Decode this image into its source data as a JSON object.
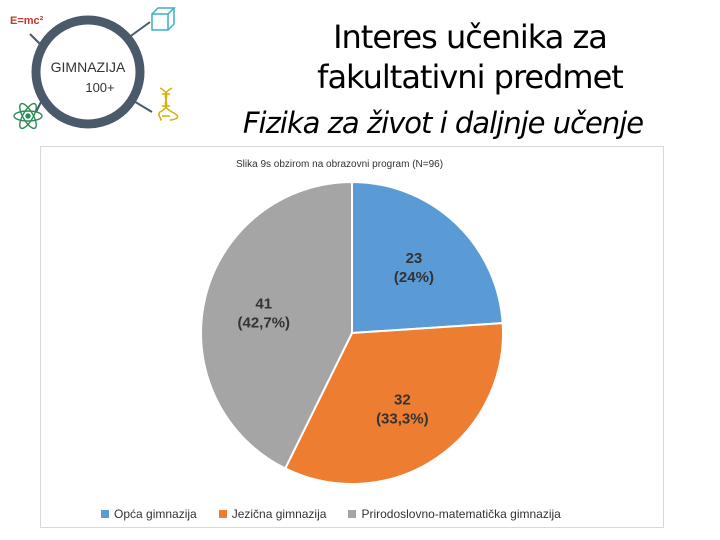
{
  "logo": {
    "formula": "E=mc²",
    "name_line1": "GIMNAZIJA",
    "name_line2": "100+",
    "ring_color": "#4a5a6a",
    "icons": [
      "cube-icon",
      "atom-icon",
      "dna-icon"
    ]
  },
  "title": {
    "line1": "Interes učenika za",
    "line2": "fakultativni predmet",
    "line3": "Fizika za život i daljnje učenje"
  },
  "chart_data": {
    "type": "pie",
    "subtitle": "Slika 9s obzirom na obrazovni program (N=96)",
    "slices": [
      {
        "label": "Opća gimnazija",
        "value": 23,
        "percent_label": "(24%)",
        "color": "#5b9bd5"
      },
      {
        "label": "Jezična gimnazija",
        "value": 32,
        "percent_label": "(33,3%)",
        "color": "#ed7d31"
      },
      {
        "label": "Prirodoslovno-matematička gimnazija",
        "value": 41,
        "percent_label": "(42,7%)",
        "color": "#a5a5a5"
      }
    ],
    "legend_position": "bottom"
  }
}
